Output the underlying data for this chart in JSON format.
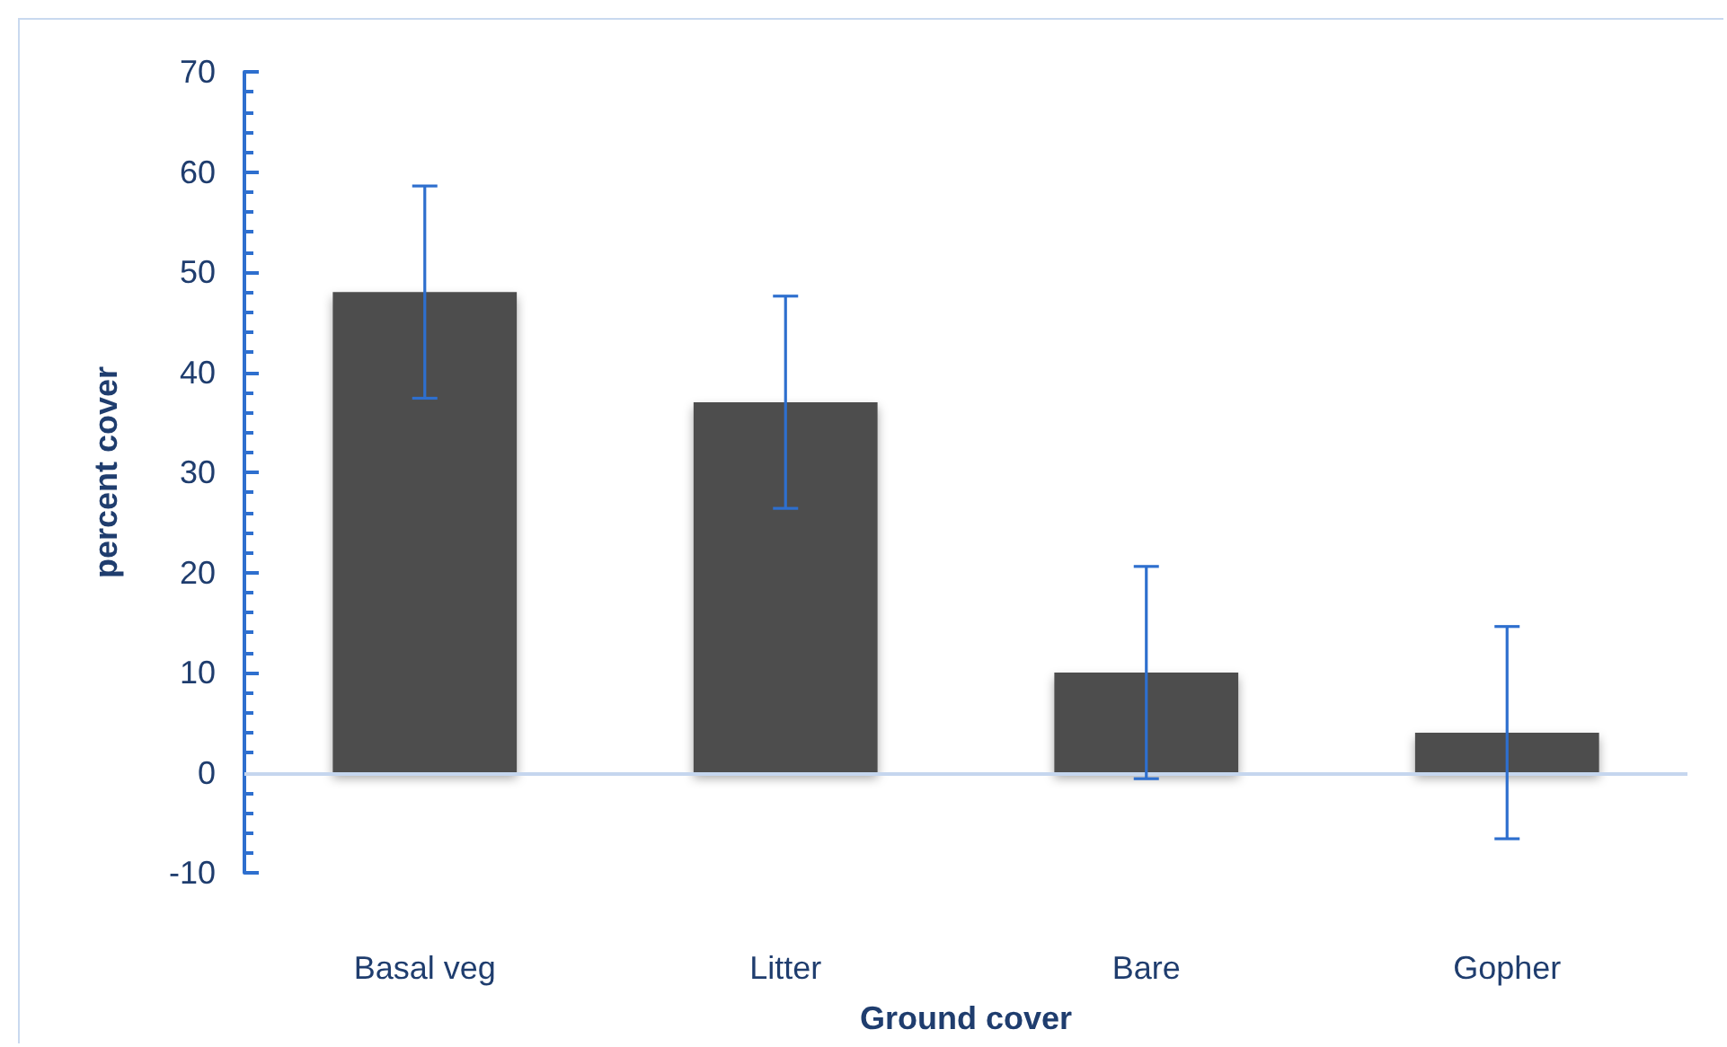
{
  "chart_data": {
    "type": "bar",
    "xlabel": "Ground cover",
    "ylabel": "percent cover",
    "categories": [
      "Basal veg",
      "Litter",
      "Bare",
      "Gopher"
    ],
    "values": [
      48,
      37,
      10,
      4
    ],
    "errors": [
      10.6,
      10.6,
      10.6,
      10.6
    ],
    "color": "#4d4d4d",
    "ylim": [
      -10,
      70
    ],
    "yticks": [
      -10,
      0,
      10,
      20,
      30,
      40,
      50,
      60,
      70
    ],
    "grid": false,
    "ref_lines": [
      {
        "axis": "y",
        "value": 0,
        "color": "#c5d6ee"
      }
    ]
  }
}
